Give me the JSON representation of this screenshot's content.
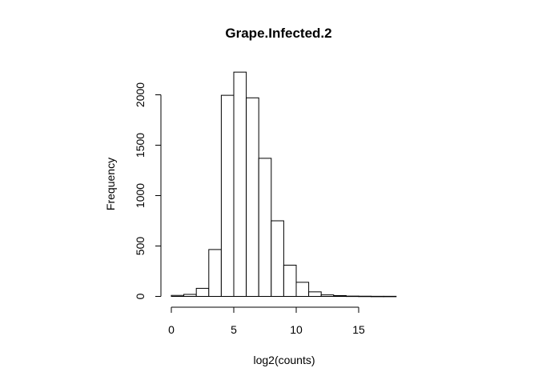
{
  "chart_data": {
    "type": "bar",
    "title": "Grape.Infected.2",
    "xlabel": "log2(counts)",
    "ylabel": "Frequency",
    "bin_edges": [
      0,
      1,
      2,
      3,
      4,
      5,
      6,
      7,
      8,
      9,
      10,
      11,
      12,
      13,
      14,
      15,
      16,
      17,
      18
    ],
    "values": [
      10,
      20,
      80,
      465,
      1995,
      2225,
      1970,
      1370,
      750,
      310,
      140,
      45,
      15,
      8,
      3,
      2,
      1,
      1
    ],
    "xlim": [
      0,
      18
    ],
    "ylim": [
      0,
      2250
    ],
    "xticks": [
      0,
      5,
      10,
      15
    ],
    "yticks": [
      0,
      500,
      1000,
      1500,
      2000
    ],
    "xtick_labels": [
      "0",
      "5",
      "10",
      "15"
    ],
    "ytick_labels": [
      "0",
      "500",
      "1000",
      "1500",
      "2000"
    ],
    "grid": false,
    "colors": {
      "bar_fill": "#ffffff",
      "bar_stroke": "#000000"
    }
  }
}
